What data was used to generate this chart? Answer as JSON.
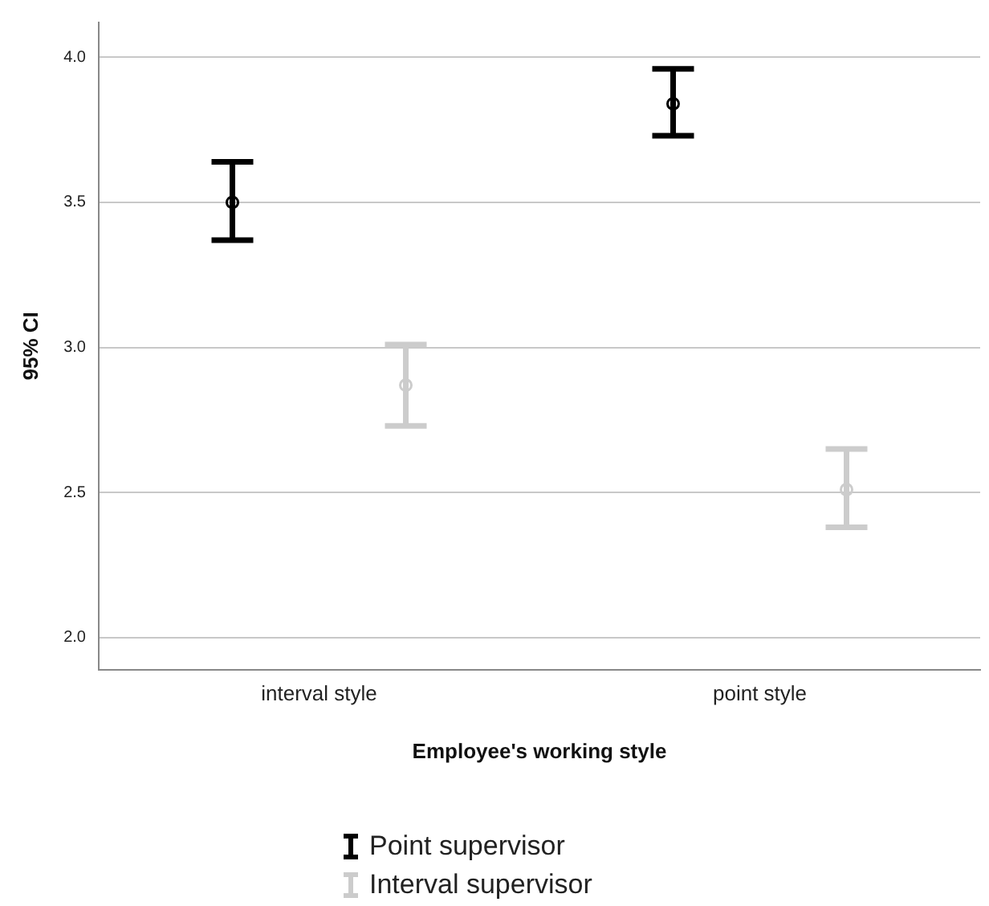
{
  "chart_data": {
    "type": "scatter",
    "xlabel": "Employee's working style",
    "ylabel": "95% CI",
    "categories": [
      "interval style",
      "point style"
    ],
    "series": [
      {
        "name": "Point supervisor",
        "color": "#000000",
        "values": [
          3.5,
          3.84
        ],
        "errors": [
          [
            3.37,
            3.64
          ],
          [
            3.73,
            3.96
          ]
        ]
      },
      {
        "name": "Interval supervisor",
        "color": "#cccccc",
        "values": [
          2.87,
          2.51
        ],
        "errors": [
          [
            2.73,
            3.01
          ],
          [
            2.38,
            2.65
          ]
        ]
      }
    ],
    "ylim": [
      1.89,
      4.12
    ],
    "yticks": [
      {
        "value": 2,
        "label": "2.0"
      },
      {
        "value": 2.5,
        "label": "2.5"
      },
      {
        "value": 3,
        "label": "3.0"
      },
      {
        "value": 3.5,
        "label": "3.5"
      },
      {
        "value": 4,
        "label": "4.0"
      }
    ],
    "grid": "y",
    "legend": "bottom",
    "marker": "circle"
  }
}
